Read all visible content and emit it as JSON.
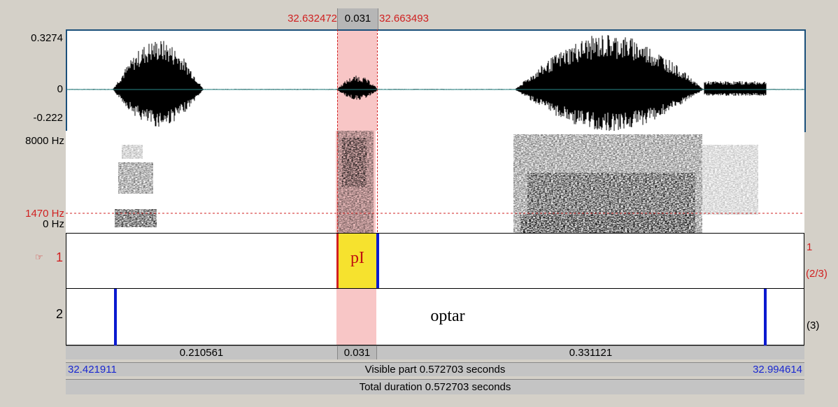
{
  "selection": {
    "start": "32.632472",
    "duration": "0.031",
    "end": "32.663493"
  },
  "waveform": {
    "max_label": "0.3274",
    "zero_label": "0",
    "min_label": "-0.222"
  },
  "spectrogram": {
    "top_label": "8000 Hz",
    "cursor_label": "1470 Hz",
    "bottom_label": "0 Hz"
  },
  "tiers": [
    {
      "number": "1",
      "pointer_icon": "hand-pointer-icon",
      "interval_text": "pI",
      "right_label": "1",
      "right_label2": "(2/3)"
    },
    {
      "number": "2",
      "interval_text": "optar",
      "right_label": "(3)"
    }
  ],
  "bottom": {
    "left_duration": "0.210561",
    "mid_duration": "0.031",
    "right_duration": "0.331121",
    "visible_start": "32.421911",
    "visible_label": "Visible part 0.572703 seconds",
    "visible_end": "32.994614",
    "total_label": "Total duration 0.572703 seconds"
  },
  "colors": {
    "selection": "#f8c6c6",
    "cursor": "#d02020",
    "boundary": "#0a1ad0",
    "interval_fill": "#f6e22e",
    "time_blue": "#1a28d0"
  }
}
